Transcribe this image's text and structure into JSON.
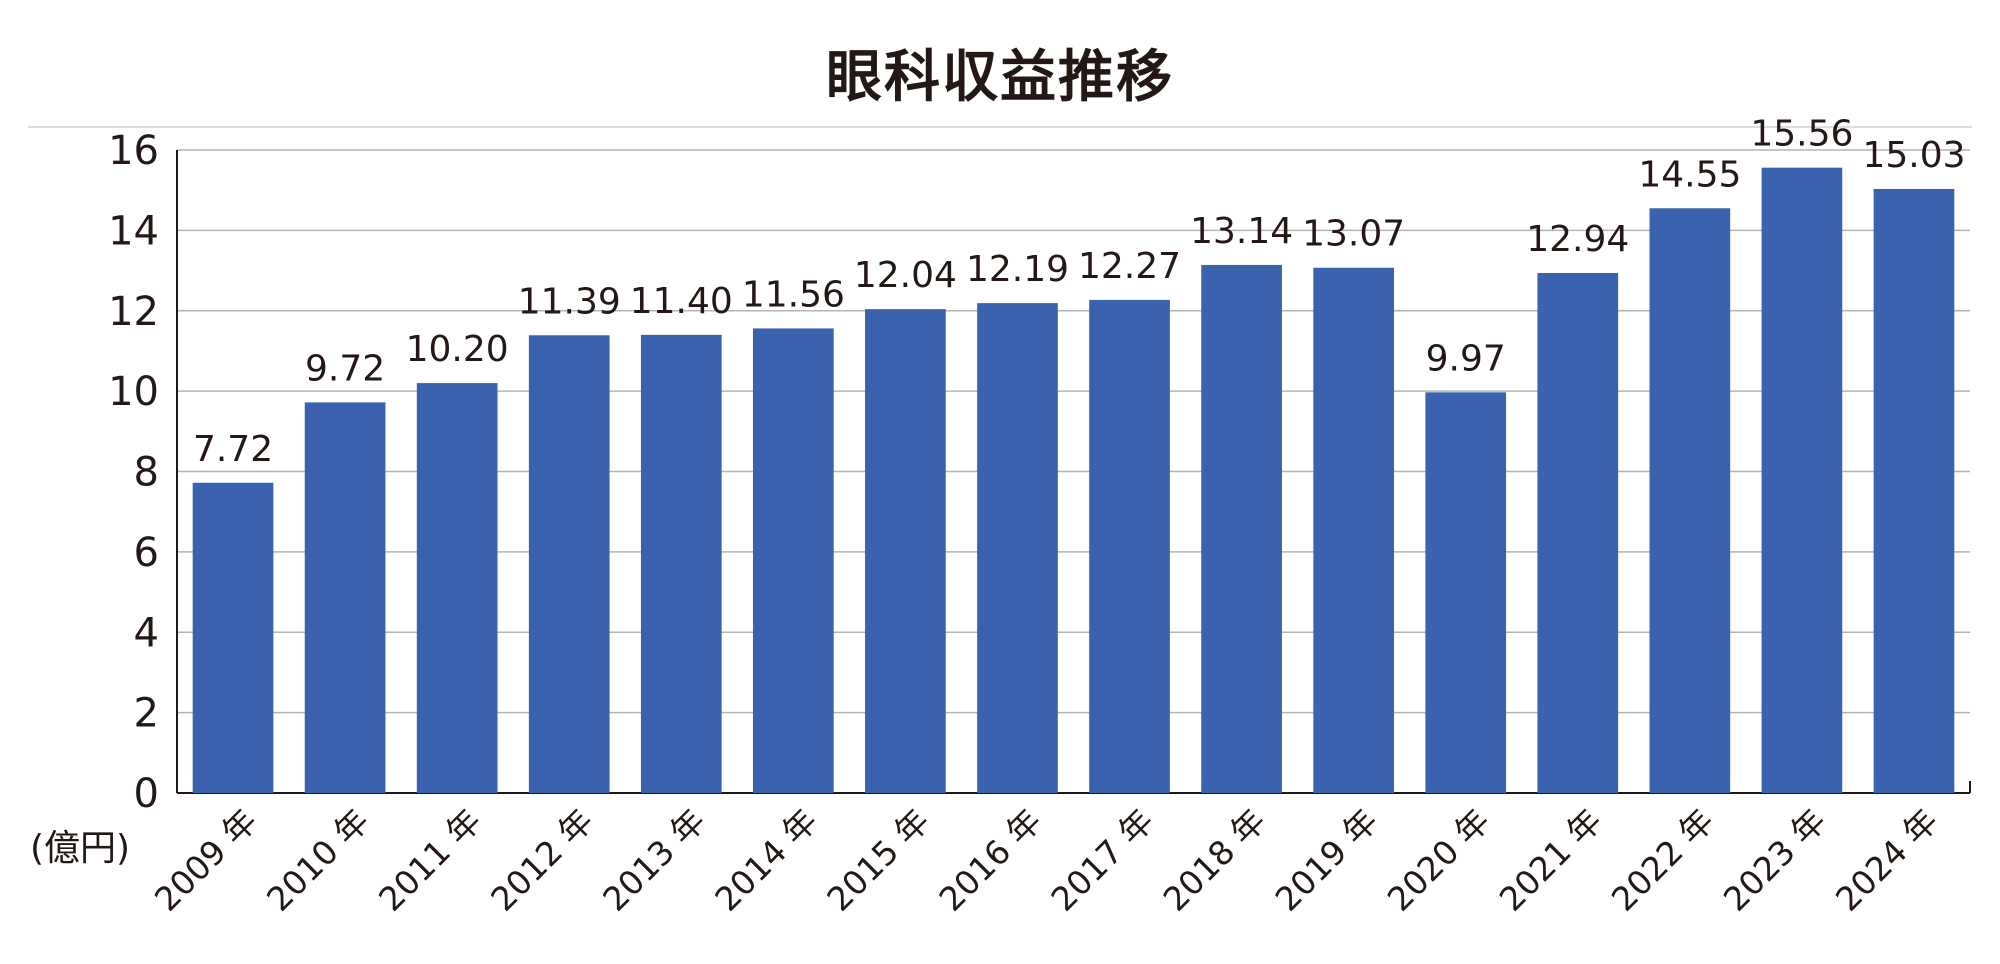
{
  "chart_data": {
    "type": "bar",
    "title": "眼科収益推移",
    "unit_label": "(億円)",
    "categories": [
      "2009 年",
      "2010 年",
      "2011 年",
      "2012 年",
      "2013 年",
      "2014 年",
      "2015 年",
      "2016 年",
      "2017 年",
      "2018 年",
      "2019 年",
      "2020 年",
      "2021 年",
      "2022 年",
      "2023 年",
      "2024 年"
    ],
    "values": [
      7.72,
      9.72,
      10.2,
      11.39,
      11.4,
      11.56,
      12.04,
      12.19,
      12.27,
      13.14,
      13.07,
      9.97,
      12.94,
      14.55,
      15.56,
      15.03
    ],
    "value_labels": [
      "7.72",
      "9.72",
      "10.20",
      "11.39",
      "11.40",
      "11.56",
      "12.04",
      "12.19",
      "12.27",
      "13.14",
      "13.07",
      "9.97",
      "12.94",
      "14.55",
      "15.56",
      "15.03"
    ],
    "yticks": [
      "0",
      "2",
      "4",
      "6",
      "8",
      "10",
      "12",
      "14",
      "16"
    ],
    "ylim": [
      0,
      16
    ],
    "grid": true,
    "bar_color": "#3a62ae"
  }
}
